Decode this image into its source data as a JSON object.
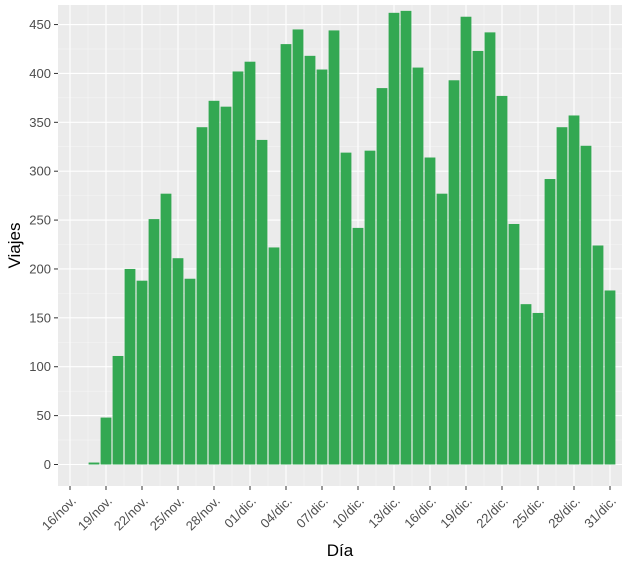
{
  "chart_data": {
    "type": "bar",
    "xlabel": "Día",
    "ylabel": "Viajes",
    "ylim": [
      -22,
      470
    ],
    "yticks": [
      0,
      50,
      100,
      150,
      200,
      250,
      300,
      350,
      400,
      450
    ],
    "grid": true,
    "colors": {
      "bar": "#33a852",
      "panel": "#ebebeb",
      "grid_major": "#ffffff",
      "tick_text": "#4d4d4d"
    },
    "x_tick_labels": [
      "16/nov.",
      "19/nov.",
      "22/nov.",
      "25/nov.",
      "28/nov.",
      "01/dic.",
      "04/dic.",
      "07/dic.",
      "10/dic.",
      "13/dic.",
      "16/dic.",
      "19/dic.",
      "22/dic.",
      "25/dic.",
      "28/dic.",
      "31/dic."
    ],
    "x_ticks": [
      "2017-11-16",
      "2017-11-19",
      "2017-11-22",
      "2017-11-25",
      "2017-11-28",
      "2017-12-01",
      "2017-12-04",
      "2017-12-07",
      "2017-12-10",
      "2017-12-13",
      "2017-12-16",
      "2017-12-19",
      "2017-12-22",
      "2017-12-25",
      "2017-12-28",
      "2017-12-31"
    ],
    "xlim": [
      "2017-11-15",
      "2018-01-01"
    ],
    "x": [
      "2017-11-18",
      "2017-11-19",
      "2017-11-20",
      "2017-11-21",
      "2017-11-22",
      "2017-11-23",
      "2017-11-24",
      "2017-11-25",
      "2017-11-26",
      "2017-11-27",
      "2017-11-28",
      "2017-11-29",
      "2017-11-30",
      "2017-12-01",
      "2017-12-02",
      "2017-12-03",
      "2017-12-04",
      "2017-12-05",
      "2017-12-06",
      "2017-12-07",
      "2017-12-08",
      "2017-12-09",
      "2017-12-10",
      "2017-12-11",
      "2017-12-12",
      "2017-12-13",
      "2017-12-14",
      "2017-12-15",
      "2017-12-16",
      "2017-12-17",
      "2017-12-18",
      "2017-12-19",
      "2017-12-20",
      "2017-12-21",
      "2017-12-22",
      "2017-12-23",
      "2017-12-24",
      "2017-12-25",
      "2017-12-26",
      "2017-12-27",
      "2017-12-28",
      "2017-12-29",
      "2017-12-30",
      "2017-12-31"
    ],
    "values": [
      2,
      48,
      111,
      200,
      188,
      251,
      277,
      211,
      190,
      345,
      372,
      366,
      402,
      412,
      332,
      222,
      430,
      445,
      418,
      404,
      444,
      319,
      242,
      321,
      385,
      462,
      464,
      406,
      314,
      277,
      393,
      458,
      423,
      442,
      377,
      246,
      164,
      155,
      292,
      345,
      357,
      326,
      224,
      178
    ]
  }
}
